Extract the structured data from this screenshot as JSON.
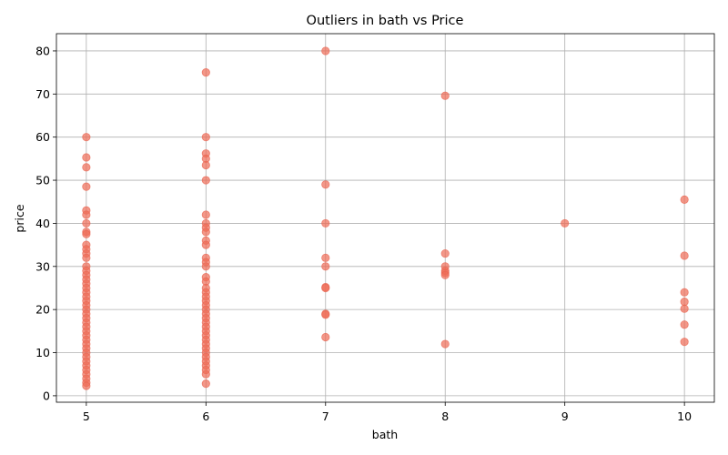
{
  "chart_data": {
    "type": "scatter",
    "title": "Outliers in bath vs Price",
    "xlabel": "bath",
    "ylabel": "price",
    "xlim": [
      4.75,
      10.25
    ],
    "ylim": [
      -1.5,
      84
    ],
    "xticks": [
      5,
      6,
      7,
      8,
      9,
      10
    ],
    "yticks": [
      0,
      10,
      20,
      30,
      40,
      50,
      60,
      70,
      80
    ],
    "grid": true,
    "marker_color": "#ee6b55",
    "marker_alpha": 0.7,
    "series": [
      {
        "points": [
          {
            "x": 5,
            "y": 60
          },
          {
            "x": 5,
            "y": 55.3
          },
          {
            "x": 5,
            "y": 53
          },
          {
            "x": 5,
            "y": 48.5
          },
          {
            "x": 5,
            "y": 43
          },
          {
            "x": 5,
            "y": 42
          },
          {
            "x": 5,
            "y": 40
          },
          {
            "x": 5,
            "y": 38
          },
          {
            "x": 5,
            "y": 37.5
          },
          {
            "x": 5,
            "y": 35
          },
          {
            "x": 5,
            "y": 34
          },
          {
            "x": 5,
            "y": 33
          },
          {
            "x": 5,
            "y": 32
          },
          {
            "x": 5,
            "y": 30
          },
          {
            "x": 5,
            "y": 29
          },
          {
            "x": 5,
            "y": 28
          },
          {
            "x": 5,
            "y": 27
          },
          {
            "x": 5,
            "y": 26
          },
          {
            "x": 5,
            "y": 25
          },
          {
            "x": 5,
            "y": 24
          },
          {
            "x": 5,
            "y": 23
          },
          {
            "x": 5,
            "y": 22
          },
          {
            "x": 5,
            "y": 21
          },
          {
            "x": 5,
            "y": 20
          },
          {
            "x": 5,
            "y": 19
          },
          {
            "x": 5,
            "y": 18
          },
          {
            "x": 5,
            "y": 17
          },
          {
            "x": 5,
            "y": 16
          },
          {
            "x": 5,
            "y": 15
          },
          {
            "x": 5,
            "y": 14
          },
          {
            "x": 5,
            "y": 13
          },
          {
            "x": 5,
            "y": 12
          },
          {
            "x": 5,
            "y": 11
          },
          {
            "x": 5,
            "y": 10
          },
          {
            "x": 5,
            "y": 9
          },
          {
            "x": 5,
            "y": 8
          },
          {
            "x": 5,
            "y": 7
          },
          {
            "x": 5,
            "y": 6
          },
          {
            "x": 5,
            "y": 5
          },
          {
            "x": 5,
            "y": 4
          },
          {
            "x": 5,
            "y": 3
          },
          {
            "x": 5,
            "y": 2.3
          },
          {
            "x": 6,
            "y": 75
          },
          {
            "x": 6,
            "y": 60
          },
          {
            "x": 6,
            "y": 56.2
          },
          {
            "x": 6,
            "y": 55
          },
          {
            "x": 6,
            "y": 53.5
          },
          {
            "x": 6,
            "y": 50
          },
          {
            "x": 6,
            "y": 42
          },
          {
            "x": 6,
            "y": 40
          },
          {
            "x": 6,
            "y": 39
          },
          {
            "x": 6,
            "y": 38
          },
          {
            "x": 6,
            "y": 36
          },
          {
            "x": 6,
            "y": 35
          },
          {
            "x": 6,
            "y": 32
          },
          {
            "x": 6,
            "y": 31
          },
          {
            "x": 6,
            "y": 30
          },
          {
            "x": 6,
            "y": 27.5
          },
          {
            "x": 6,
            "y": 26.5
          },
          {
            "x": 6,
            "y": 25
          },
          {
            "x": 6,
            "y": 24
          },
          {
            "x": 6,
            "y": 23
          },
          {
            "x": 6,
            "y": 22
          },
          {
            "x": 6,
            "y": 21
          },
          {
            "x": 6,
            "y": 20
          },
          {
            "x": 6,
            "y": 19
          },
          {
            "x": 6,
            "y": 18
          },
          {
            "x": 6,
            "y": 17
          },
          {
            "x": 6,
            "y": 16
          },
          {
            "x": 6,
            "y": 15
          },
          {
            "x": 6,
            "y": 14
          },
          {
            "x": 6,
            "y": 13
          },
          {
            "x": 6,
            "y": 12
          },
          {
            "x": 6,
            "y": 11
          },
          {
            "x": 6,
            "y": 10
          },
          {
            "x": 6,
            "y": 9
          },
          {
            "x": 6,
            "y": 8
          },
          {
            "x": 6,
            "y": 7
          },
          {
            "x": 6,
            "y": 6
          },
          {
            "x": 6,
            "y": 5
          },
          {
            "x": 6,
            "y": 2.8
          },
          {
            "x": 7,
            "y": 80
          },
          {
            "x": 7,
            "y": 49
          },
          {
            "x": 7,
            "y": 40
          },
          {
            "x": 7,
            "y": 32
          },
          {
            "x": 7,
            "y": 30
          },
          {
            "x": 7,
            "y": 25.2
          },
          {
            "x": 7,
            "y": 25
          },
          {
            "x": 7,
            "y": 19
          },
          {
            "x": 7,
            "y": 18.8
          },
          {
            "x": 7,
            "y": 13.6
          },
          {
            "x": 8,
            "y": 69.6
          },
          {
            "x": 8,
            "y": 33
          },
          {
            "x": 8,
            "y": 30
          },
          {
            "x": 8,
            "y": 29
          },
          {
            "x": 8,
            "y": 28.5
          },
          {
            "x": 8,
            "y": 28
          },
          {
            "x": 8,
            "y": 12
          },
          {
            "x": 9,
            "y": 40
          },
          {
            "x": 10,
            "y": 45.5
          },
          {
            "x": 10,
            "y": 32.5
          },
          {
            "x": 10,
            "y": 24
          },
          {
            "x": 10,
            "y": 21.8
          },
          {
            "x": 10,
            "y": 20.2
          },
          {
            "x": 10,
            "y": 16.5
          },
          {
            "x": 10,
            "y": 12.5
          }
        ]
      }
    ]
  }
}
